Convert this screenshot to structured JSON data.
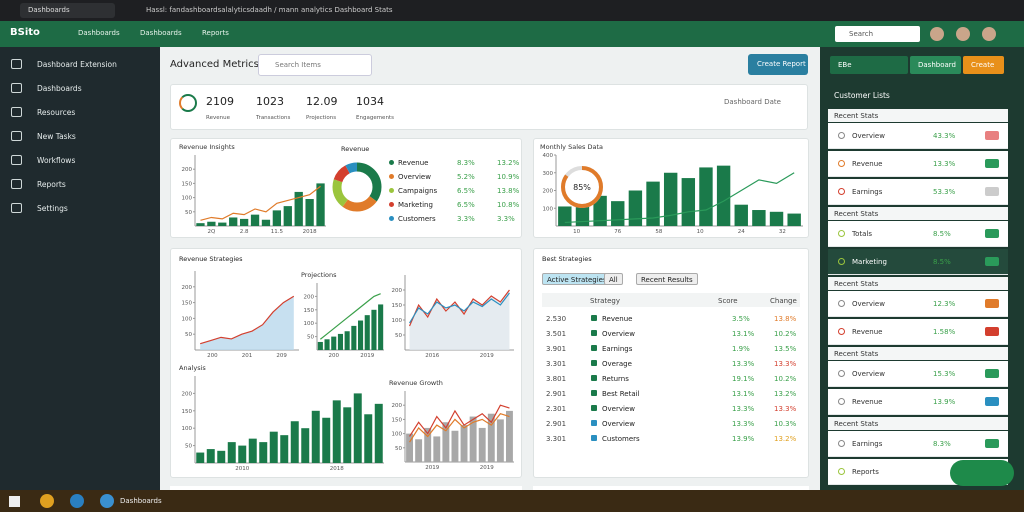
{
  "browser": {
    "tab": "Dashboards",
    "url": "Hassl: fandashboardsalalyticsdaadh / mann analytics Dashboard Stats"
  },
  "header": {
    "logo": "BSito",
    "nav": [
      "Dashboards",
      "Dashboards",
      "Reports"
    ],
    "search": "Search"
  },
  "sidebar": {
    "items": [
      "Dashboard Extension",
      "Dashboards",
      "Resources",
      "New Tasks",
      "Workflows",
      "Reports",
      "Settings"
    ]
  },
  "main": {
    "title": "Advanced Metrics",
    "search": "Search Items",
    "button": "Create Report",
    "date": "Dashboard Date",
    "kpis": [
      {
        "value": "2109",
        "label": "Revenue"
      },
      {
        "value": "1023",
        "label": "Transactions"
      },
      {
        "value": "12.09",
        "label": "Projections"
      },
      {
        "value": "1034",
        "label": "Engagements"
      }
    ]
  },
  "revenue_chart": {
    "type": "bar",
    "title": "Revenue Insights",
    "ylim": [
      0,
      250
    ],
    "yticks": [
      50,
      100,
      150,
      200
    ],
    "xlabels": [
      "2Q",
      "2.8",
      "11.5",
      "2018"
    ],
    "bars": {
      "color": "#1a7a4a",
      "values": [
        10,
        15,
        12,
        30,
        25,
        40,
        22,
        55,
        70,
        120,
        95,
        150
      ]
    },
    "lines": [
      {
        "color": "#e07b2a",
        "values": [
          20,
          30,
          25,
          45,
          40,
          60,
          50,
          80,
          90,
          100,
          110,
          140
        ]
      }
    ]
  },
  "donut": {
    "title": "Revenue",
    "items": [
      {
        "name": "Revenue",
        "value": 35,
        "label": "8.3%",
        "change": "13.2%",
        "color": "#1a7a4a"
      },
      {
        "name": "Overview",
        "value": 25,
        "label": "5.2%",
        "change": "10.9%",
        "color": "#e07b2a"
      },
      {
        "name": "Campaigns",
        "value": 20,
        "label": "6.5%",
        "change": "13.8%",
        "color": "#9bc53d"
      },
      {
        "name": "Marketing",
        "value": 12,
        "label": "6.5%",
        "change": "10.8%",
        "color": "#d33f2e"
      },
      {
        "name": "Customers",
        "value": 8,
        "label": "3.3%",
        "change": "3.3%",
        "color": "#2a8fc0"
      }
    ]
  },
  "sales_chart": {
    "type": "bar",
    "title": "Monthly Sales Data",
    "ylim": [
      0,
      400
    ],
    "yticks": [
      100,
      200,
      300,
      400
    ],
    "xlabels": [
      "10",
      "76",
      "58",
      "10",
      "24",
      "32"
    ],
    "gauge": {
      "value": 85,
      "label": "85%"
    },
    "bars": {
      "color": "#1a7a4a",
      "values": [
        110,
        150,
        170,
        140,
        200,
        250,
        300,
        270,
        330,
        340,
        120,
        90,
        80,
        70
      ]
    },
    "lines": [
      {
        "color": "#2a9a5a",
        "values": [
          20,
          25,
          30,
          35,
          40,
          45,
          60,
          80,
          90,
          140,
          200,
          260,
          240,
          300
        ]
      }
    ]
  },
  "strategies": {
    "title": "Revenue Strategies",
    "charts": [
      {
        "type": "area",
        "ylim": [
          0,
          250
        ],
        "yticks": [
          50,
          100,
          150,
          200
        ],
        "xlabels": [
          "200",
          "201",
          "209"
        ],
        "lines": [
          {
            "color": "#d33f2e",
            "values": [
              20,
              30,
              40,
              35,
              50,
              60,
              80,
              120,
              150,
              170
            ],
            "area": "#b9d8ec"
          }
        ]
      },
      {
        "type": "bar",
        "title": "Projections",
        "ylim": [
          0,
          250
        ],
        "yticks": [
          50,
          100,
          150,
          200
        ],
        "xlabels": [
          "200",
          "2019"
        ],
        "bars": {
          "color": "#1a7a4a",
          "values": [
            30,
            40,
            50,
            60,
            70,
            90,
            110,
            130,
            150,
            170
          ]
        },
        "lines": [
          {
            "color": "#3aa04a",
            "values": [
              40,
              60,
              80,
              100,
              120,
              140,
              160,
              180,
              200,
              210
            ]
          }
        ]
      },
      {
        "type": "line",
        "ylim": [
          0,
          250
        ],
        "yticks": [
          50,
          100,
          150,
          200
        ],
        "xlabels": [
          "2016",
          "2019"
        ],
        "lines": [
          {
            "color": "#d33f2e",
            "values": [
              80,
              150,
              110,
              170,
              130,
              160,
              120,
              170,
              150,
              180,
              160,
              200
            ],
            "area": "#dfe6ec"
          },
          {
            "color": "#2a8fc0",
            "values": [
              90,
              140,
              120,
              160,
              140,
              150,
              130,
              160,
              145,
              170,
              150,
              190
            ]
          }
        ]
      },
      {
        "type": "bar",
        "title": "Analysis",
        "ylim": [
          0,
          250
        ],
        "yticks": [
          50,
          100,
          150,
          200
        ],
        "xlabels": [
          "2010",
          "2018"
        ],
        "bars": {
          "color": "#1a7a4a",
          "values": [
            30,
            40,
            35,
            60,
            50,
            70,
            60,
            90,
            80,
            120,
            100,
            150,
            130,
            180,
            160,
            200,
            140,
            170
          ]
        }
      },
      {
        "type": "bar",
        "title": "Revenue Growth",
        "ylim": [
          0,
          250
        ],
        "yticks": [
          50,
          100,
          150,
          200
        ],
        "xlabels": [
          "2019",
          "2019"
        ],
        "bars": {
          "color": "#a8a8a8",
          "values": [
            100,
            80,
            120,
            90,
            140,
            110,
            130,
            160,
            120,
            170,
            150,
            180
          ]
        },
        "lines": [
          {
            "color": "#d33f2e",
            "values": [
              90,
              140,
              100,
              160,
              120,
              180,
              130,
              150,
              170,
              140,
              200,
              190
            ]
          },
          {
            "color": "#e07b2a",
            "values": [
              70,
              120,
              90,
              130,
              110,
              150,
              120,
              140,
              150,
              130,
              170,
              160
            ]
          }
        ]
      }
    ]
  },
  "table": {
    "title": "Best Strategies",
    "filters": [
      "Active Strategies",
      "All",
      "Recent Results"
    ],
    "columns": [
      "Strategy",
      "Score",
      "Change"
    ],
    "rows": [
      {
        "id": "2.530",
        "name": "Revenue",
        "score": "3.5%",
        "change": "13.8%",
        "color": "#e07b2a",
        "icon": "#1a7a4a"
      },
      {
        "id": "3.501",
        "name": "Overview",
        "score": "13.1%",
        "change": "10.2%",
        "color": "#3aa04a",
        "icon": "#1a7a4a"
      },
      {
        "id": "3.901",
        "name": "Earnings",
        "score": "1.9%",
        "change": "13.5%",
        "color": "#3aa04a",
        "icon": "#1a7a4a"
      },
      {
        "id": "3.301",
        "name": "Overage",
        "score": "13.3%",
        "change": "13.3%",
        "color": "#d33f2e",
        "icon": "#1a7a4a"
      },
      {
        "id": "3.801",
        "name": "Returns",
        "score": "19.1%",
        "change": "10.2%",
        "color": "#3aa04a",
        "icon": "#1a7a4a"
      },
      {
        "id": "2.901",
        "name": "Best Retail",
        "score": "13.1%",
        "change": "13.2%",
        "color": "#3aa04a",
        "icon": "#1a7a4a"
      },
      {
        "id": "2.301",
        "name": "Overview",
        "score": "13.3%",
        "change": "13.3%",
        "color": "#d33f2e",
        "icon": "#1a7a4a"
      },
      {
        "id": "2.901",
        "name": "Overview",
        "score": "13.3%",
        "change": "10.3%",
        "color": "#3aa04a",
        "icon": "#2a8fc0"
      },
      {
        "id": "3.301",
        "name": "Customers",
        "score": "13.9%",
        "change": "13.2%",
        "color": "#e0a020",
        "icon": "#2a8fc0"
      }
    ]
  },
  "panel": {
    "buttons": [
      "EBe",
      "Dashboard",
      "Create"
    ],
    "title": "Customer Lists",
    "items": [
      {
        "heading": "Recent Stats"
      },
      {
        "label": "Overview",
        "value": "43.3%",
        "pill": "#e88080",
        "icon": "#888888"
      },
      {
        "label": "Revenue",
        "value": "13.3%",
        "pill": "#2a9a5a",
        "icon": "#e07b2a"
      },
      {
        "label": "Earnings",
        "value": "53.3%",
        "pill": "#cccccc",
        "icon": "#d33f2e"
      },
      {
        "heading": "Recent Stats"
      },
      {
        "label": "Totals",
        "value": "8.5%",
        "pill": "#2a9a5a",
        "icon": "#9bc53d"
      },
      {
        "label": "Marketing",
        "value": "8.5%",
        "pill": "#2a9a5a",
        "icon": "#9bc53d",
        "dark": true
      },
      {
        "heading": "Recent Stats"
      },
      {
        "label": "Overview",
        "value": "12.3%",
        "pill": "#e07b2a",
        "icon": "#888888"
      },
      {
        "label": "Revenue",
        "value": "1.58%",
        "pill": "#d33f2e",
        "icon": "#d33f2e"
      },
      {
        "heading": "Recent Stats"
      },
      {
        "label": "Overview",
        "value": "15.3%",
        "pill": "#2a9a5a",
        "icon": "#888888"
      },
      {
        "label": "Revenue",
        "value": "13.9%",
        "pill": "#2a8fc0",
        "icon": "#888888"
      },
      {
        "heading": "Recent Stats"
      },
      {
        "label": "Earnings",
        "value": "8.3%",
        "pill": "#2a9a5a",
        "icon": "#888888"
      },
      {
        "label": "Reports",
        "value": "",
        "pill": "#cccccc",
        "icon": "#9bc53d"
      }
    ]
  },
  "taskbar": {
    "item": "Dashboards"
  }
}
